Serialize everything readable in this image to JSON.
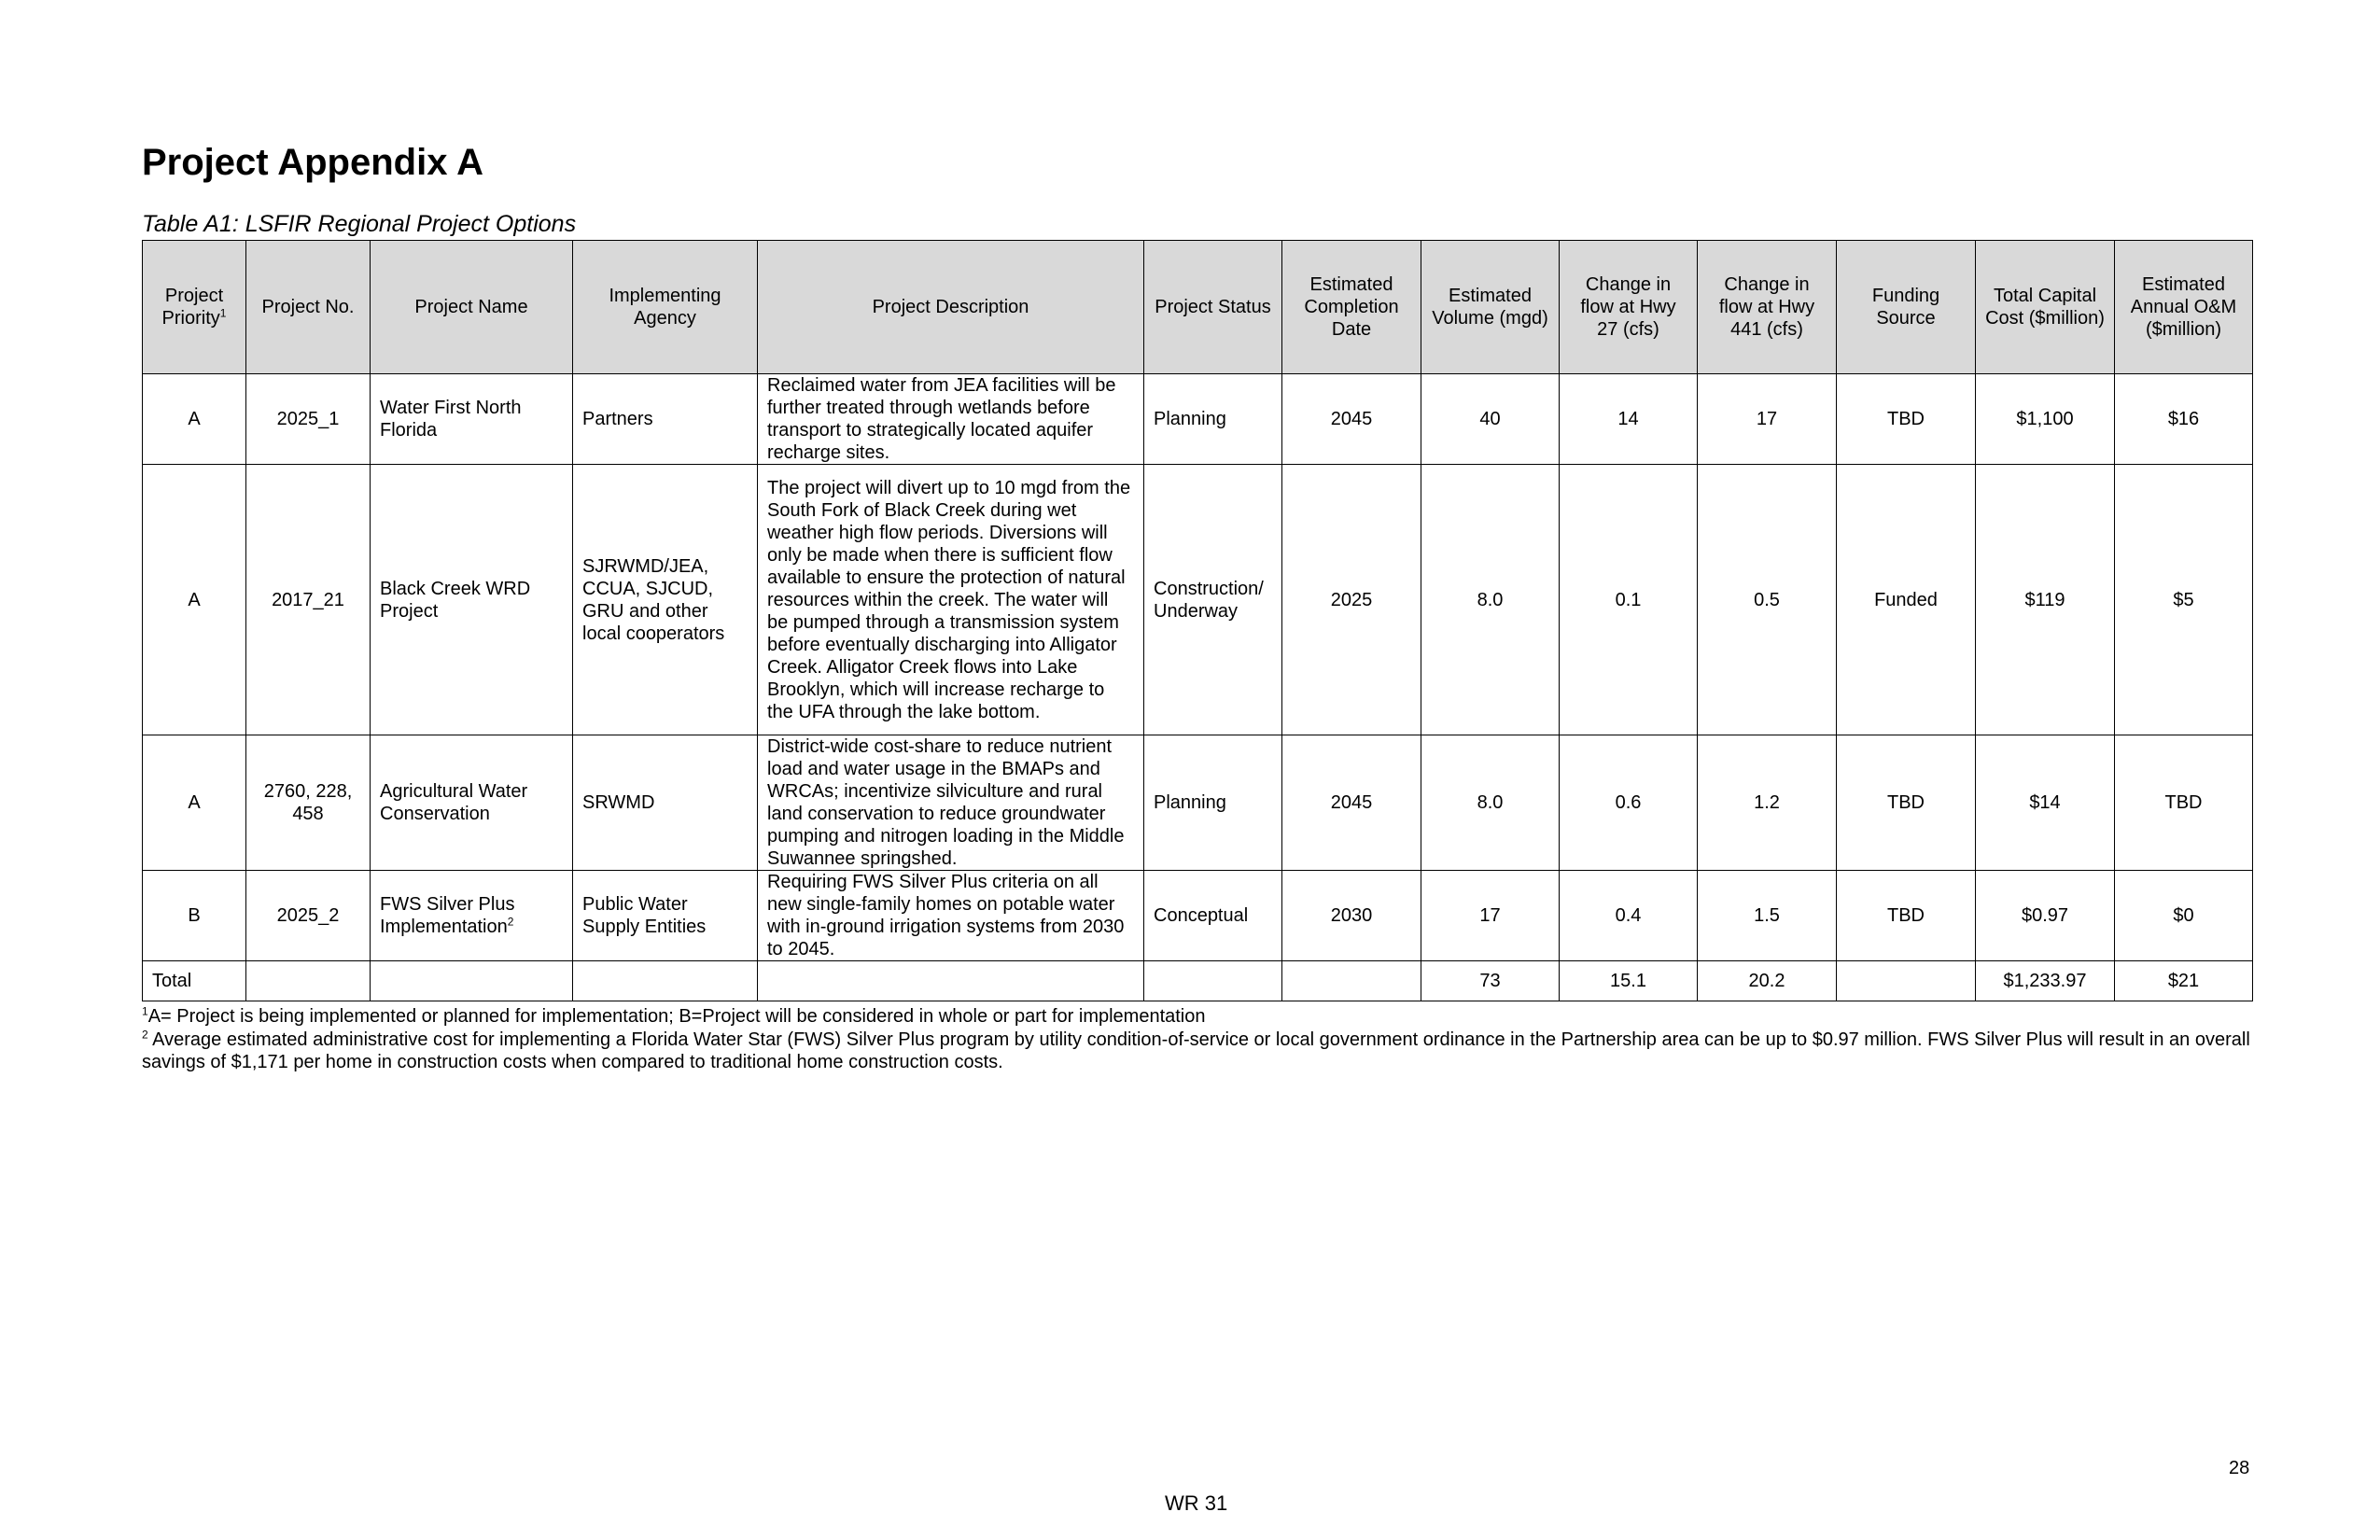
{
  "page_title": "Project Appendix A",
  "table_caption": "Table A1: LSFIR Regional Project Options",
  "columns": [
    {
      "label": "Project Priority",
      "sup": "1"
    },
    {
      "label": "Project No."
    },
    {
      "label": "Project Name"
    },
    {
      "label": "Implementing Agency"
    },
    {
      "label": "Project Description"
    },
    {
      "label": "Project Status"
    },
    {
      "label": "Estimated Completion Date"
    },
    {
      "label": "Estimated Volume (mgd)"
    },
    {
      "label": "Change in flow at Hwy 27 (cfs)"
    },
    {
      "label": "Change in flow at Hwy 441 (cfs)"
    },
    {
      "label": "Funding Source"
    },
    {
      "label": "Total Capital Cost ($million)"
    },
    {
      "label": "Estimated Annual O&M ($million)"
    }
  ],
  "rows": [
    {
      "priority": "A",
      "number": "2025_1",
      "name": "Water First North Florida",
      "agency": "Partners",
      "description": "Reclaimed water from JEA facilities will be further treated through wetlands before transport to strategically located aquifer recharge sites.",
      "status": "Planning",
      "completion": "2045",
      "volume": "40",
      "flow27": "14",
      "flow441": "17",
      "funding": "TBD",
      "capital": "$1,100",
      "om": "$16"
    },
    {
      "priority": "A",
      "number": "2017_21",
      "name": "Black Creek WRD Project",
      "agency": "SJRWMD/JEA, CCUA, SJCUD, GRU and other local cooperators",
      "description": "The project will divert up to 10 mgd from the South Fork of Black Creek during wet weather high flow periods. Diversions will only be made when there is sufficient flow available to ensure the protection of natural resources within the creek. The water will be pumped through a transmission system before eventually discharging into Alligator Creek. Alligator Creek flows into Lake Brooklyn, which will increase recharge to the UFA through the lake bottom.",
      "status": "Construction/ Underway",
      "completion": "2025",
      "volume": "8.0",
      "flow27": "0.1",
      "flow441": "0.5",
      "funding": "Funded",
      "capital": "$119",
      "om": "$5"
    },
    {
      "priority": "A",
      "number": "2760, 228, 458",
      "name": "Agricultural Water Conservation",
      "agency": "SRWMD",
      "description": "District-wide cost-share to reduce nutrient load and water usage in the BMAPs and WRCAs; incentivize silviculture and rural land conservation to reduce groundwater pumping and nitrogen loading in the Middle Suwannee springshed.",
      "status": "Planning",
      "completion": "2045",
      "volume": "8.0",
      "flow27": "0.6",
      "flow441": "1.2",
      "funding": "TBD",
      "capital": "$14",
      "om": "TBD"
    },
    {
      "priority": "B",
      "number": "2025_2",
      "name": "FWS Silver Plus Implementation",
      "name_sup": "2",
      "agency": "Public Water Supply Entities",
      "description": "Requiring FWS Silver Plus criteria on all new single-family homes on potable water with in-ground irrigation systems from 2030 to 2045.",
      "status": "Conceptual",
      "completion": "2030",
      "volume": "17",
      "flow27": "0.4",
      "flow441": "1.5",
      "funding": "TBD",
      "capital": "$0.97",
      "om": "$0"
    }
  ],
  "total": {
    "label": "Total",
    "volume": "73",
    "flow27": "15.1",
    "flow441": "20.2",
    "capital": "$1,233.97",
    "om": "$21"
  },
  "footnotes": [
    {
      "sup": "1",
      "text": "A= Project is being implemented or planned for implementation; B=Project will be considered in whole or part for implementation"
    },
    {
      "sup": "2",
      "text": " Average estimated administrative cost for implementing a Florida Water Star (FWS) Silver Plus program by utility condition-of-service or local government ordinance in the Partnership area can be up to $0.97 million. FWS Silver Plus will result in an overall savings of $1,171 per home in construction costs when compared to traditional home construction costs."
    }
  ],
  "page_number": "28",
  "footer_code": "WR 31"
}
